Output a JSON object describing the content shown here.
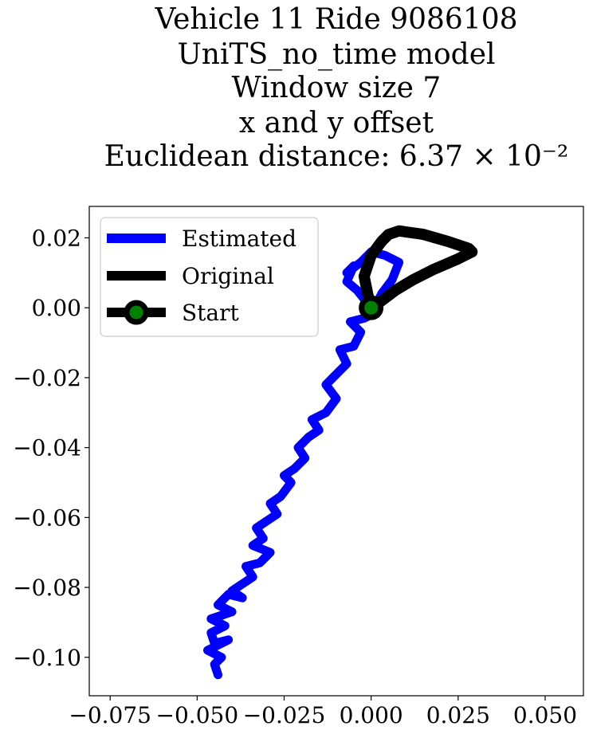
{
  "chart_data": {
    "type": "line",
    "title_lines": [
      "Vehicle 11 Ride 9086108",
      "UniTS_no_time model",
      "Window size 7",
      "x and y offset",
      "Euclidean distance: 6.37 × 10⁻²"
    ],
    "xlabel": "",
    "ylabel": "",
    "xlim": [
      -0.081,
      0.061
    ],
    "ylim": [
      -0.111,
      0.029
    ],
    "x_ticks": [
      -0.075,
      -0.05,
      -0.025,
      0.0,
      0.025,
      0.05
    ],
    "x_tick_labels": [
      "−0.075",
      "−0.050",
      "−0.025",
      "0.000",
      "0.025",
      "0.050"
    ],
    "y_ticks": [
      0.02,
      0.0,
      -0.02,
      -0.04,
      -0.06,
      -0.08,
      -0.1
    ],
    "y_tick_labels": [
      "0.02",
      "0.00",
      "−0.02",
      "−0.04",
      "−0.06",
      "−0.08",
      "−0.10"
    ],
    "grid": false,
    "legend_position": "top-left",
    "series": [
      {
        "name": "Estimated",
        "color": "#0000ff",
        "x": [
          0.0,
          -0.004,
          -0.007,
          -0.005,
          -0.007,
          -0.003,
          0.0,
          0.004,
          0.008,
          0.006,
          0.003,
          0.0,
          -0.002,
          -0.006,
          -0.003,
          -0.005,
          -0.009,
          -0.007,
          -0.01,
          -0.013,
          -0.01,
          -0.013,
          -0.017,
          -0.015,
          -0.018,
          -0.021,
          -0.019,
          -0.022,
          -0.025,
          -0.023,
          -0.026,
          -0.029,
          -0.027,
          -0.03,
          -0.033,
          -0.031,
          -0.034,
          -0.029,
          -0.032,
          -0.036,
          -0.034,
          -0.037,
          -0.04,
          -0.037,
          -0.041,
          -0.044,
          -0.04,
          -0.043,
          -0.046,
          -0.042,
          -0.046,
          -0.045,
          -0.041,
          -0.045,
          -0.047,
          -0.043,
          -0.045,
          -0.044
        ],
        "y": [
          0.0,
          0.005,
          0.0075,
          0.012,
          0.01,
          0.013,
          0.016,
          0.015,
          0.013,
          0.008,
          0.004,
          -0.002,
          -0.003,
          -0.004,
          -0.007,
          -0.011,
          -0.012,
          -0.016,
          -0.019,
          -0.022,
          -0.026,
          -0.03,
          -0.032,
          -0.035,
          -0.037,
          -0.04,
          -0.043,
          -0.046,
          -0.048,
          -0.05,
          -0.054,
          -0.056,
          -0.059,
          -0.061,
          -0.063,
          -0.066,
          -0.068,
          -0.07,
          -0.073,
          -0.074,
          -0.077,
          -0.079,
          -0.081,
          -0.083,
          -0.082,
          -0.085,
          -0.087,
          -0.088,
          -0.089,
          -0.091,
          -0.093,
          -0.096,
          -0.095,
          -0.097,
          -0.098,
          -0.1,
          -0.102,
          -0.105
        ]
      },
      {
        "name": "Original",
        "color": "#000000",
        "x": [
          0.0,
          -0.001,
          -0.002,
          0.0,
          0.003,
          0.005,
          0.008,
          0.015,
          0.022,
          0.028,
          0.029,
          0.025,
          0.018,
          0.012,
          0.007,
          0.003,
          0.0
        ],
        "y": [
          0.0,
          0.004,
          0.009,
          0.015,
          0.019,
          0.021,
          0.022,
          0.021,
          0.019,
          0.017,
          0.016,
          0.014,
          0.011,
          0.008,
          0.005,
          0.002,
          0.0
        ]
      }
    ],
    "start_marker": {
      "name": "Start",
      "x": 0.0,
      "y": 0.0,
      "edge_color": "#000000",
      "face_color": "#008000"
    }
  }
}
